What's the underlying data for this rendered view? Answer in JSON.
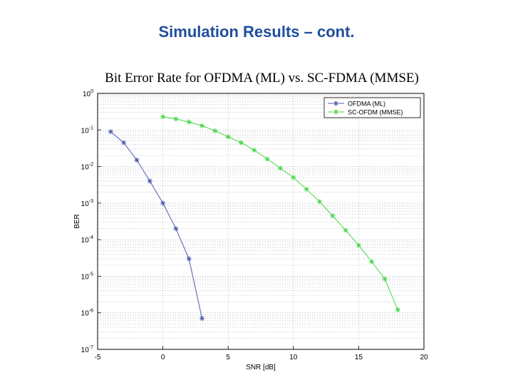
{
  "slide": {
    "title": "Simulation Results – cont."
  },
  "chart_data": {
    "type": "line",
    "title": "Bit Error Rate for OFDMA (ML) vs. SC-FDMA (MMSE)",
    "xlabel": "SNR [dB]",
    "ylabel": "BER",
    "xlim": [
      -5,
      20
    ],
    "ylim": [
      1e-07,
      1
    ],
    "yscale": "log",
    "grid": true,
    "legend_position": "top-right",
    "x_ticks": [
      -5,
      0,
      5,
      10,
      15,
      20
    ],
    "y_tick_exponents": [
      0,
      -1,
      -2,
      -3,
      -4,
      -5,
      -6,
      -7
    ],
    "series": [
      {
        "name": "OFDMA (ML)",
        "color": "#4a5aa8",
        "marker": "*",
        "x": [
          -4,
          -3,
          -2,
          -1,
          0,
          1,
          2,
          3
        ],
        "y": [
          0.09,
          0.045,
          0.015,
          0.004,
          0.001,
          0.0002,
          3e-05,
          7e-07
        ]
      },
      {
        "name": "SC-OFDM (MMSE)",
        "color": "#47d647",
        "marker": "*",
        "x": [
          0,
          1,
          2,
          3,
          4,
          5,
          6,
          7,
          8,
          9,
          10,
          11,
          12,
          13,
          14,
          15,
          16,
          17,
          18
        ],
        "y": [
          0.23,
          0.2,
          0.165,
          0.13,
          0.095,
          0.065,
          0.045,
          0.028,
          0.016,
          0.009,
          0.005,
          0.0024,
          0.0011,
          0.00045,
          0.00018,
          7e-05,
          2.5e-05,
          8.5e-06,
          1.2e-06
        ]
      }
    ]
  }
}
